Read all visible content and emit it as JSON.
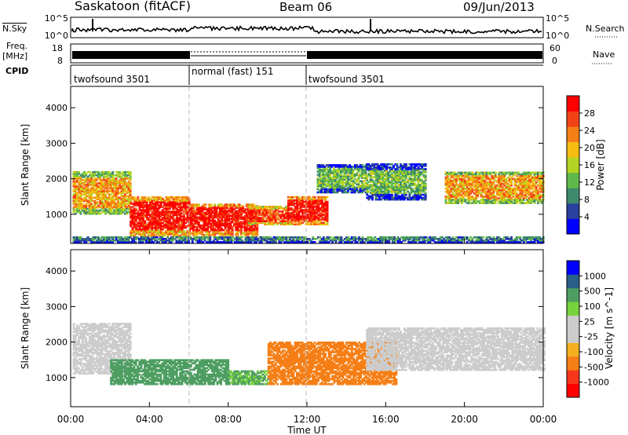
{
  "header": {
    "station": "Saskatoon (fitACF)",
    "beam": "Beam 06",
    "date": "09/Jun/2013"
  },
  "panels": {
    "nsky": {
      "label": "N.Sky",
      "ticks": [
        "10^5",
        "10^0"
      ]
    },
    "nsearch": {
      "label": "N.Search",
      "ticks": [
        "10^5",
        "10^0"
      ]
    },
    "freq": {
      "label_line1": "Freq.",
      "label_line2": "[MHz]",
      "ticks": [
        "18",
        "8"
      ]
    },
    "nave": {
      "label": "Nave",
      "ticks": [
        "60",
        "0"
      ]
    },
    "cpid": {
      "label": "CPID",
      "segments": [
        {
          "name": "twofsound 3501",
          "start_h": 0,
          "end_h": 6
        },
        {
          "name": "normal (fast) 151",
          "start_h": 6,
          "end_h": 12
        },
        {
          "name": "twofsound 3501",
          "start_h": 12,
          "end_h": 24
        }
      ]
    }
  },
  "colors": {
    "power": [
      "#0000ff",
      "#2a3f9e",
      "#3d8a6c",
      "#5fb94a",
      "#b4d424",
      "#f5bc12",
      "#f57f16",
      "#f24316",
      "#ff0000"
    ],
    "velocity": [
      "#ff0000",
      "#f5361a",
      "#f57f16",
      "#f5b020",
      "#cccccc",
      "#cccccc",
      "#78d23c",
      "#4e9e62",
      "#2a5f8a",
      "#0000ff"
    ]
  },
  "chart_data": [
    {
      "type": "heatmap",
      "name": "power",
      "xlabel": "",
      "ylabel": "Slant Range [km]",
      "xlim": [
        0,
        24
      ],
      "ylim": [
        180,
        4600
      ],
      "yticks": [
        1000,
        2000,
        3000,
        4000
      ],
      "colorbar": {
        "label": "Power [dB]",
        "ticks": [
          "4",
          "8",
          "12",
          "16",
          "20",
          "24",
          "28"
        ],
        "range": [
          0,
          30
        ]
      },
      "regions": [
        {
          "x_start": 0.1,
          "x_end": 3.0,
          "y_low": 1000,
          "y_high": 2200,
          "value": 20
        },
        {
          "x_start": 3.0,
          "x_end": 6.0,
          "y_low": 380,
          "y_high": 1500,
          "value": 28
        },
        {
          "x_start": 6.0,
          "x_end": 9.5,
          "y_low": 400,
          "y_high": 1300,
          "value": 28
        },
        {
          "x_start": 9.0,
          "x_end": 11.0,
          "y_low": 700,
          "y_high": 1200,
          "value": 26
        },
        {
          "x_start": 11.0,
          "x_end": 13.0,
          "y_low": 700,
          "y_high": 1500,
          "value": 28
        },
        {
          "x_start": 12.5,
          "x_end": 15.0,
          "y_low": 1600,
          "y_high": 2400,
          "value": 12
        },
        {
          "x_start": 15.0,
          "x_end": 18.0,
          "y_low": 1400,
          "y_high": 2400,
          "value": 12
        },
        {
          "x_start": 19.0,
          "x_end": 24.0,
          "y_low": 1300,
          "y_high": 2200,
          "value": 20
        },
        {
          "x_start": 0.1,
          "x_end": 24.0,
          "y_low": 200,
          "y_high": 380,
          "value": 8
        }
      ]
    },
    {
      "type": "heatmap",
      "name": "velocity",
      "xlabel": "Time UT",
      "ylabel": "Slant Range [km]",
      "xlim": [
        0,
        24
      ],
      "ylim": [
        180,
        4600
      ],
      "xticks": [
        "00:00",
        "04:00",
        "08:00",
        "12:00",
        "16:00",
        "20:00",
        "00:00"
      ],
      "yticks": [
        1000,
        2000,
        3000,
        4000
      ],
      "colorbar": {
        "label": "Velocity [m s^-1]",
        "ticks": [
          "-1000",
          "-500",
          "-100",
          "-25",
          "25",
          "100",
          "500",
          "1000"
        ]
      },
      "regions": [
        {
          "x_start": 0.1,
          "x_end": 3.0,
          "y_low": 1100,
          "y_high": 2500,
          "value": 0
        },
        {
          "x_start": 2.0,
          "x_end": 8.0,
          "y_low": 800,
          "y_high": 1500,
          "value": 300
        },
        {
          "x_start": 8.0,
          "x_end": 10.0,
          "y_low": 800,
          "y_high": 1200,
          "value": 100
        },
        {
          "x_start": 10.0,
          "x_end": 16.5,
          "y_low": 800,
          "y_high": 2000,
          "value": -250
        },
        {
          "x_start": 15.0,
          "x_end": 24.0,
          "y_low": 1200,
          "y_high": 2400,
          "value": 0
        }
      ]
    }
  ]
}
